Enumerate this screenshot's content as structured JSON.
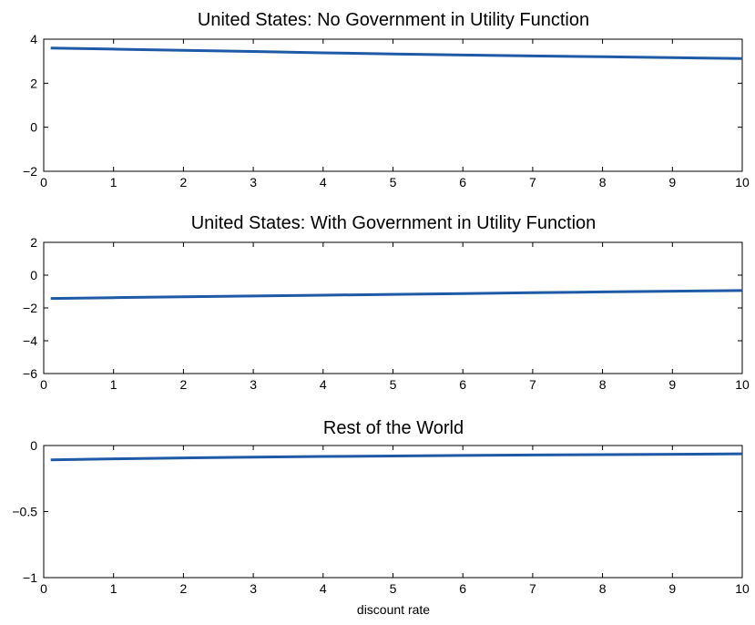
{
  "chart_data": [
    {
      "type": "line",
      "title": "United States: No Government in Utility Function",
      "xlabel": "",
      "ylabel": "",
      "xlim": [
        0,
        10
      ],
      "ylim": [
        -2,
        4
      ],
      "xticks": [
        0,
        1,
        2,
        3,
        4,
        5,
        6,
        7,
        8,
        9,
        10
      ],
      "yticks": [
        -2,
        0,
        2,
        4
      ],
      "yticklabels": [
        "−2",
        "0",
        "2",
        "4"
      ],
      "grid": false,
      "series": [
        {
          "color": "#1f5aa6",
          "x": [
            0.1,
            1,
            2,
            3,
            4,
            5,
            6,
            7,
            8,
            9,
            10
          ],
          "y": [
            3.6,
            3.55,
            3.49,
            3.44,
            3.38,
            3.33,
            3.28,
            3.24,
            3.2,
            3.16,
            3.12
          ]
        }
      ]
    },
    {
      "type": "line",
      "title": "United States: With Government in Utility Function",
      "xlabel": "",
      "ylabel": "",
      "xlim": [
        0,
        10
      ],
      "ylim": [
        -6,
        2
      ],
      "xticks": [
        0,
        1,
        2,
        3,
        4,
        5,
        6,
        7,
        8,
        9,
        10
      ],
      "yticks": [
        -6,
        -4,
        -2,
        0,
        2
      ],
      "yticklabels": [
        "−6",
        "−4",
        "−2",
        "0",
        "2"
      ],
      "grid": false,
      "series": [
        {
          "color": "#1f5aa6",
          "x": [
            0.1,
            1,
            2,
            3,
            4,
            5,
            6,
            7,
            8,
            9,
            10
          ],
          "y": [
            -1.42,
            -1.37,
            -1.32,
            -1.27,
            -1.22,
            -1.17,
            -1.12,
            -1.07,
            -1.02,
            -0.98,
            -0.94
          ]
        }
      ]
    },
    {
      "type": "line",
      "title": "Rest of the World",
      "xlabel": "discount rate",
      "ylabel": "",
      "xlim": [
        0,
        10
      ],
      "ylim": [
        -1,
        0
      ],
      "xticks": [
        0,
        1,
        2,
        3,
        4,
        5,
        6,
        7,
        8,
        9,
        10
      ],
      "yticks": [
        -1,
        -0.5,
        0
      ],
      "yticklabels": [
        "−1",
        "−0.5",
        "0"
      ],
      "grid": false,
      "series": [
        {
          "color": "#1f5aa6",
          "x": [
            0.1,
            1,
            2,
            3,
            4,
            5,
            6,
            7,
            8,
            9,
            10
          ],
          "y": [
            -0.108,
            -0.101,
            -0.094,
            -0.088,
            -0.083,
            -0.079,
            -0.075,
            -0.072,
            -0.069,
            -0.066,
            -0.063
          ]
        }
      ]
    }
  ]
}
